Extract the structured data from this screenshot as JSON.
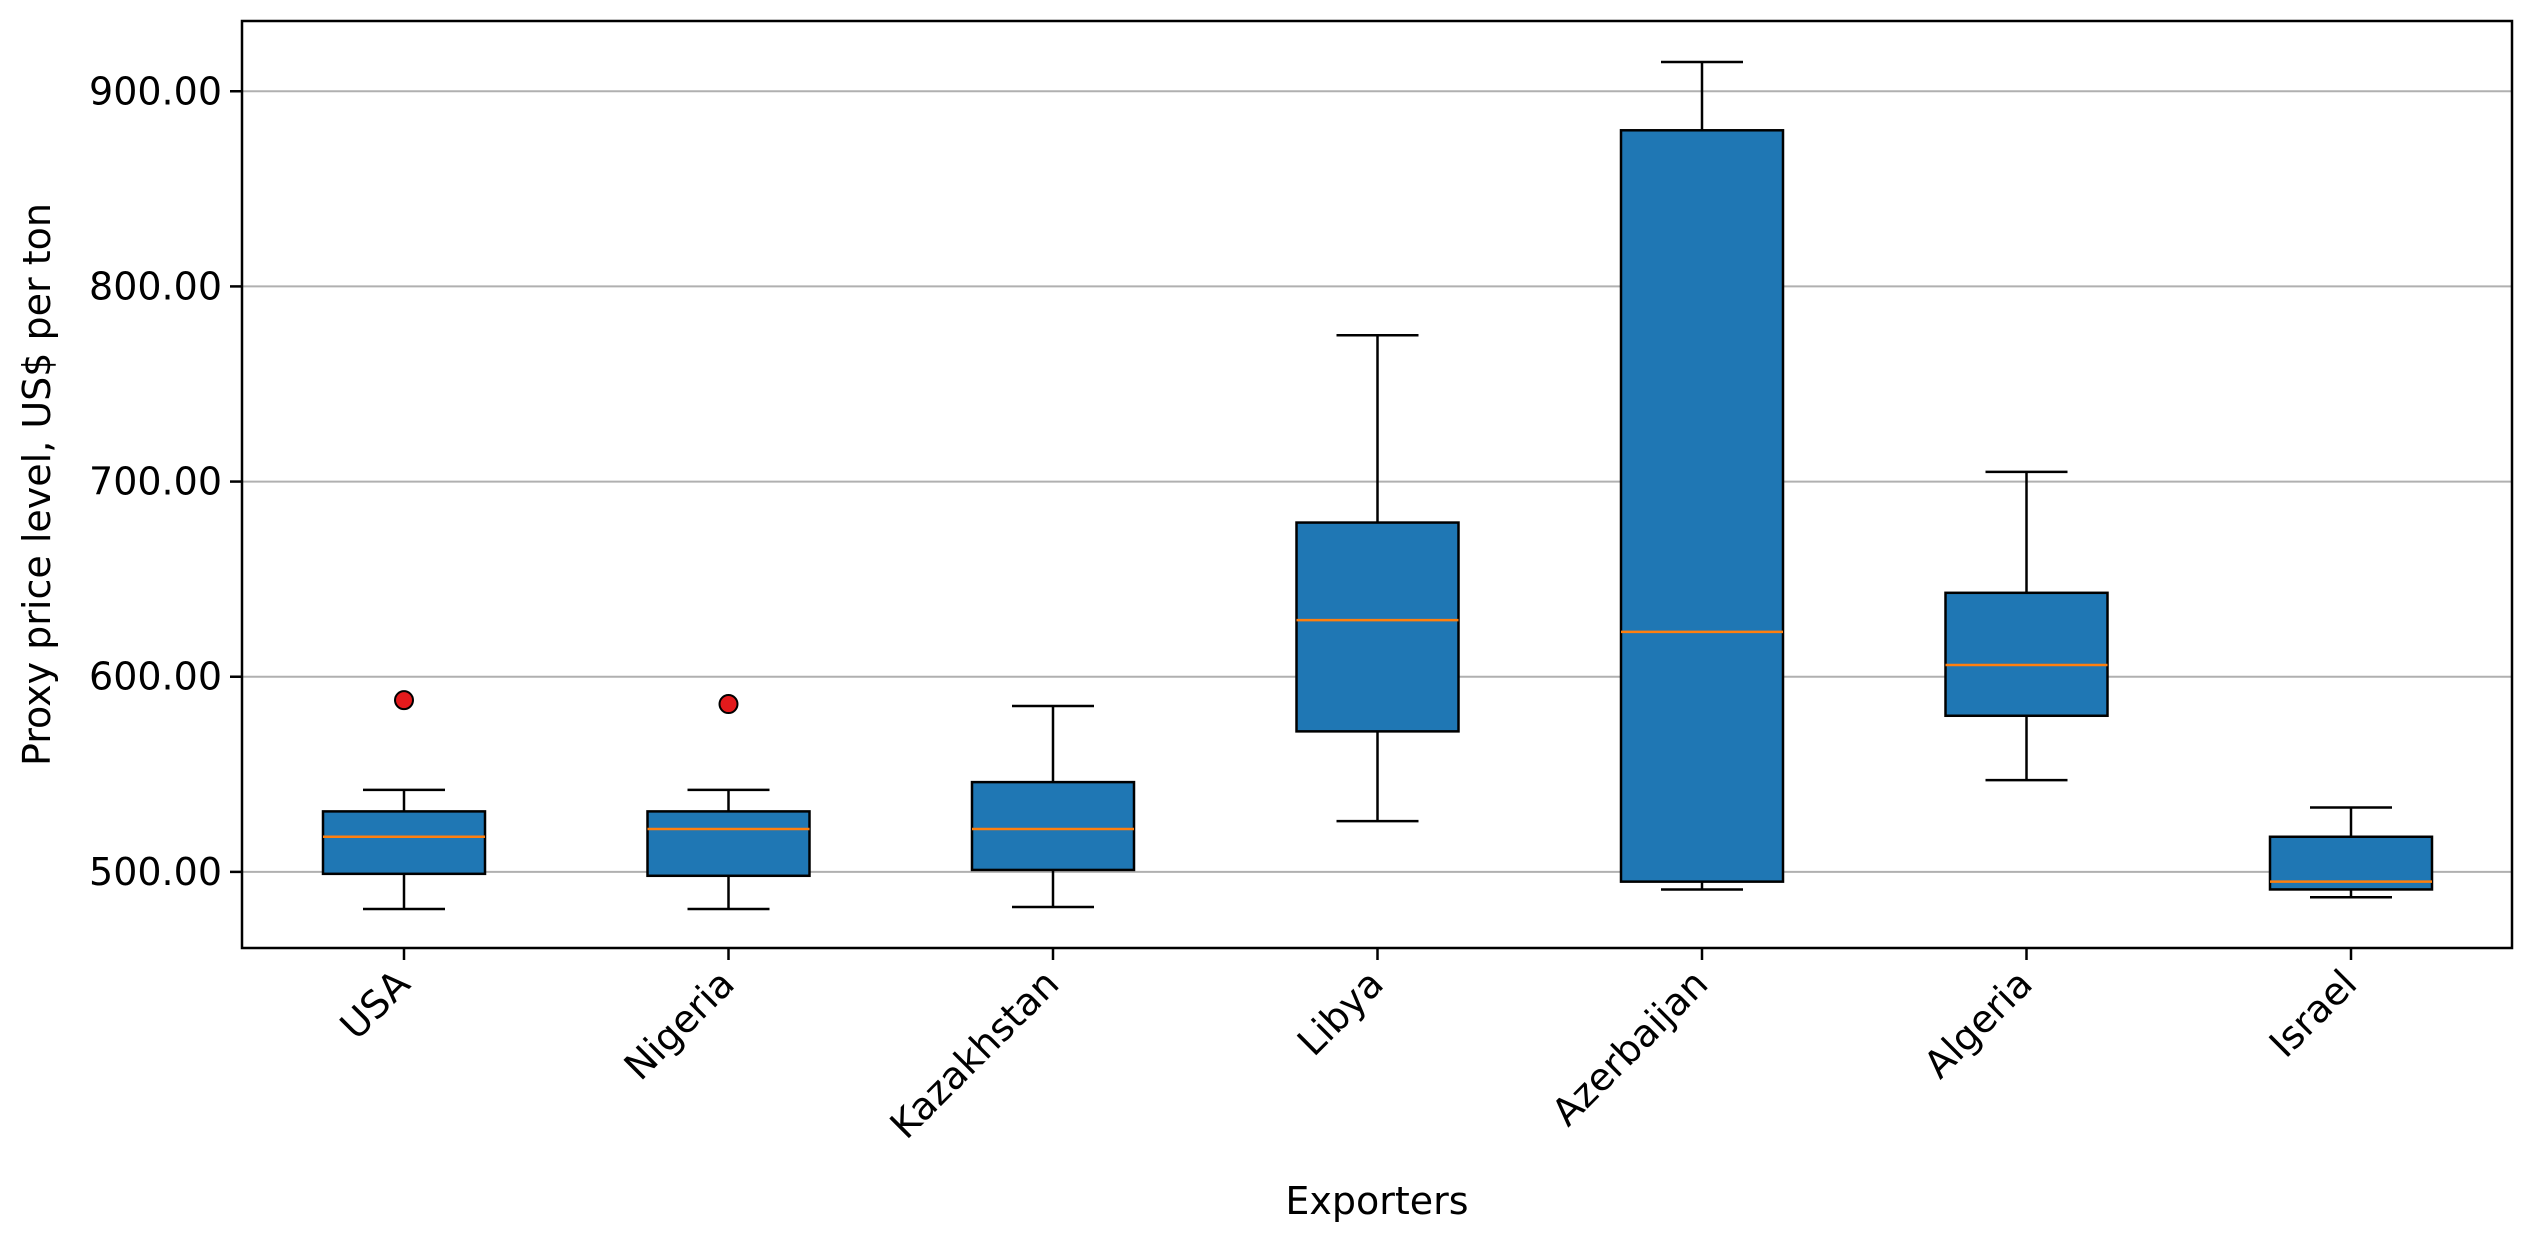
{
  "chart_data": {
    "type": "box",
    "title": "",
    "xlabel": "Exporters",
    "ylabel": "Proxy price level, US$ per ton",
    "ylim": [
      461,
      936
    ],
    "yticks": [
      "500.00",
      "600.00",
      "700.00",
      "800.00",
      "900.00"
    ],
    "ytick_values": [
      500,
      600,
      700,
      800,
      900
    ],
    "grid": "horizontal",
    "legend": "none",
    "categories": [
      "USA",
      "Nigeria",
      "Kazakhstan",
      "Libya",
      "Azerbaijan",
      "Algeria",
      "Israel"
    ],
    "boxes": [
      {
        "category": "USA",
        "whisker_low": 481,
        "q1": 499,
        "median": 518,
        "q3": 531,
        "whisker_high": 542,
        "outliers": [
          588
        ]
      },
      {
        "category": "Nigeria",
        "whisker_low": 481,
        "q1": 498,
        "median": 522,
        "q3": 531,
        "whisker_high": 542,
        "outliers": [
          586
        ]
      },
      {
        "category": "Kazakhstan",
        "whisker_low": 482,
        "q1": 501,
        "median": 522,
        "q3": 546,
        "whisker_high": 585,
        "outliers": []
      },
      {
        "category": "Libya",
        "whisker_low": 526,
        "q1": 572,
        "median": 629,
        "q3": 679,
        "whisker_high": 775,
        "outliers": []
      },
      {
        "category": "Azerbaijan",
        "whisker_low": 491,
        "q1": 495,
        "median": 623,
        "q3": 880,
        "whisker_high": 915,
        "outliers": []
      },
      {
        "category": "Algeria",
        "whisker_low": 547,
        "q1": 580,
        "median": 606,
        "q3": 643,
        "whisker_high": 705,
        "outliers": []
      },
      {
        "category": "Israel",
        "whisker_low": 487,
        "q1": 491,
        "median": 495,
        "q3": 518,
        "whisker_high": 533,
        "outliers": []
      }
    ],
    "colors": {
      "box_fill": "#1f77b4",
      "box_edge": "#000000",
      "median": "#ff7f0e",
      "outlier_fill": "#e31a1c",
      "grid": "#b0b0b0"
    }
  }
}
